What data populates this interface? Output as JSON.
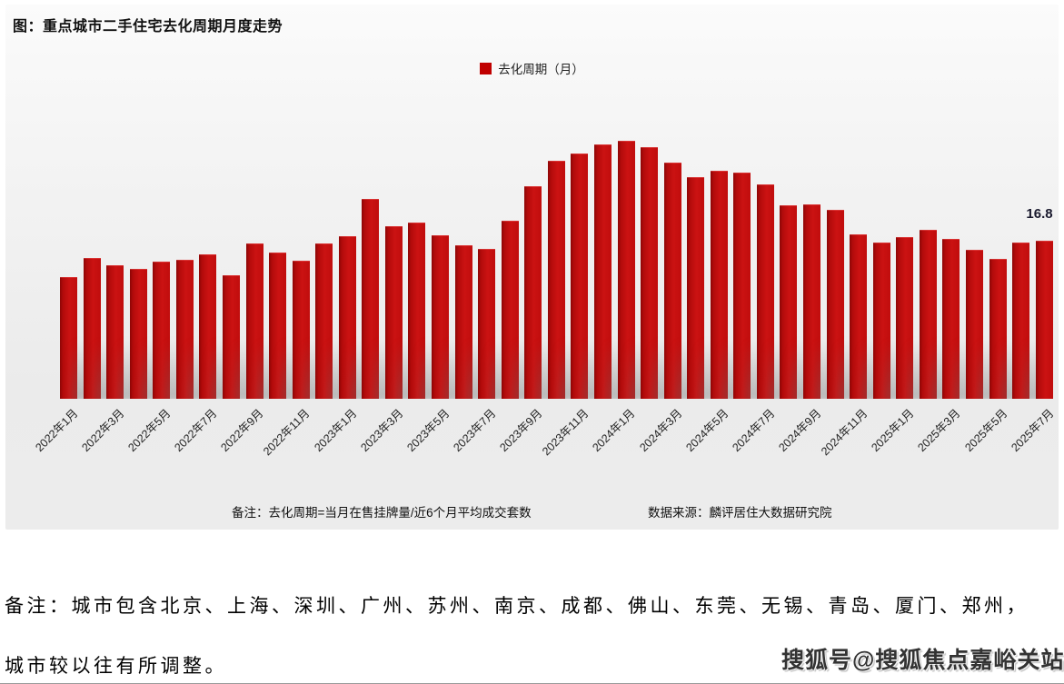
{
  "page": {
    "note_line1": "备注：城市包含北京、上海、深圳、广州、苏州、南京、成都、佛山、东莞、无锡、青岛、厦门、郑州，",
    "note_line2": "城市较以往有所调整。",
    "watermark": "搜狐号@搜狐焦点嘉峪关站"
  },
  "chart": {
    "title": "图：重点城市二手住宅去化周期月度走势",
    "legend_label": "去化周期（月）",
    "footnote_left": "备注：去化周期=当月在售挂牌量/近6个月平均成交套数",
    "footnote_right": "数据来源：麟评居住大数据研究院",
    "bar_color": "#c00000",
    "last_value_label": "16.8"
  },
  "chart_data": {
    "type": "bar",
    "title": "图：重点城市二手住宅去化周期月度走势",
    "legend": [
      "去化周期（月）"
    ],
    "legend_position": "top-center",
    "grid": false,
    "ylabel": "去化周期（月）",
    "xlabel": "",
    "ylim": [
      0,
      30
    ],
    "categories": [
      "2022年1月",
      "2022年2月",
      "2022年3月",
      "2022年4月",
      "2022年5月",
      "2022年6月",
      "2022年7月",
      "2022年8月",
      "2022年9月",
      "2022年10月",
      "2022年11月",
      "2022年12月",
      "2023年1月",
      "2023年2月",
      "2023年3月",
      "2023年4月",
      "2023年5月",
      "2023年6月",
      "2023年7月",
      "2023年8月",
      "2023年9月",
      "2023年10月",
      "2023年11月",
      "2023年12月",
      "2024年1月",
      "2024年2月",
      "2024年3月",
      "2024年4月",
      "2024年5月",
      "2024年6月",
      "2024年7月",
      "2024年8月",
      "2024年9月",
      "2024年10月",
      "2024年11月",
      "2024年12月",
      "2025年1月",
      "2025年2月",
      "2025年3月",
      "2025年4月",
      "2025年5月",
      "2025年6月",
      "2025年7月"
    ],
    "values": [
      12.9,
      15.0,
      14.2,
      13.8,
      14.6,
      14.8,
      15.3,
      13.1,
      16.5,
      15.5,
      14.7,
      16.5,
      17.3,
      21.2,
      18.3,
      18.7,
      17.4,
      16.3,
      15.9,
      18.9,
      22.6,
      25.3,
      26.1,
      27.0,
      27.4,
      26.7,
      25.1,
      23.6,
      24.2,
      24.0,
      22.8,
      20.6,
      20.7,
      20.1,
      17.5,
      16.6,
      17.2,
      18.0,
      17.0,
      15.8,
      14.9,
      16.6,
      16.8
    ],
    "x_tick_labels": [
      "2022年1月",
      "2022年3月",
      "2022年5月",
      "2022年7月",
      "2022年9月",
      "2022年11月",
      "2023年1月",
      "2023年3月",
      "2023年5月",
      "2023年7月",
      "2023年9月",
      "2023年11月",
      "2024年1月",
      "2024年3月",
      "2024年5月",
      "2024年7月",
      "2024年9月",
      "2024年11月",
      "2025年1月",
      "2025年3月",
      "2025年5月",
      "2025年7月"
    ],
    "annotations": [
      {
        "text": "16.8",
        "category": "2025年7月"
      }
    ]
  }
}
